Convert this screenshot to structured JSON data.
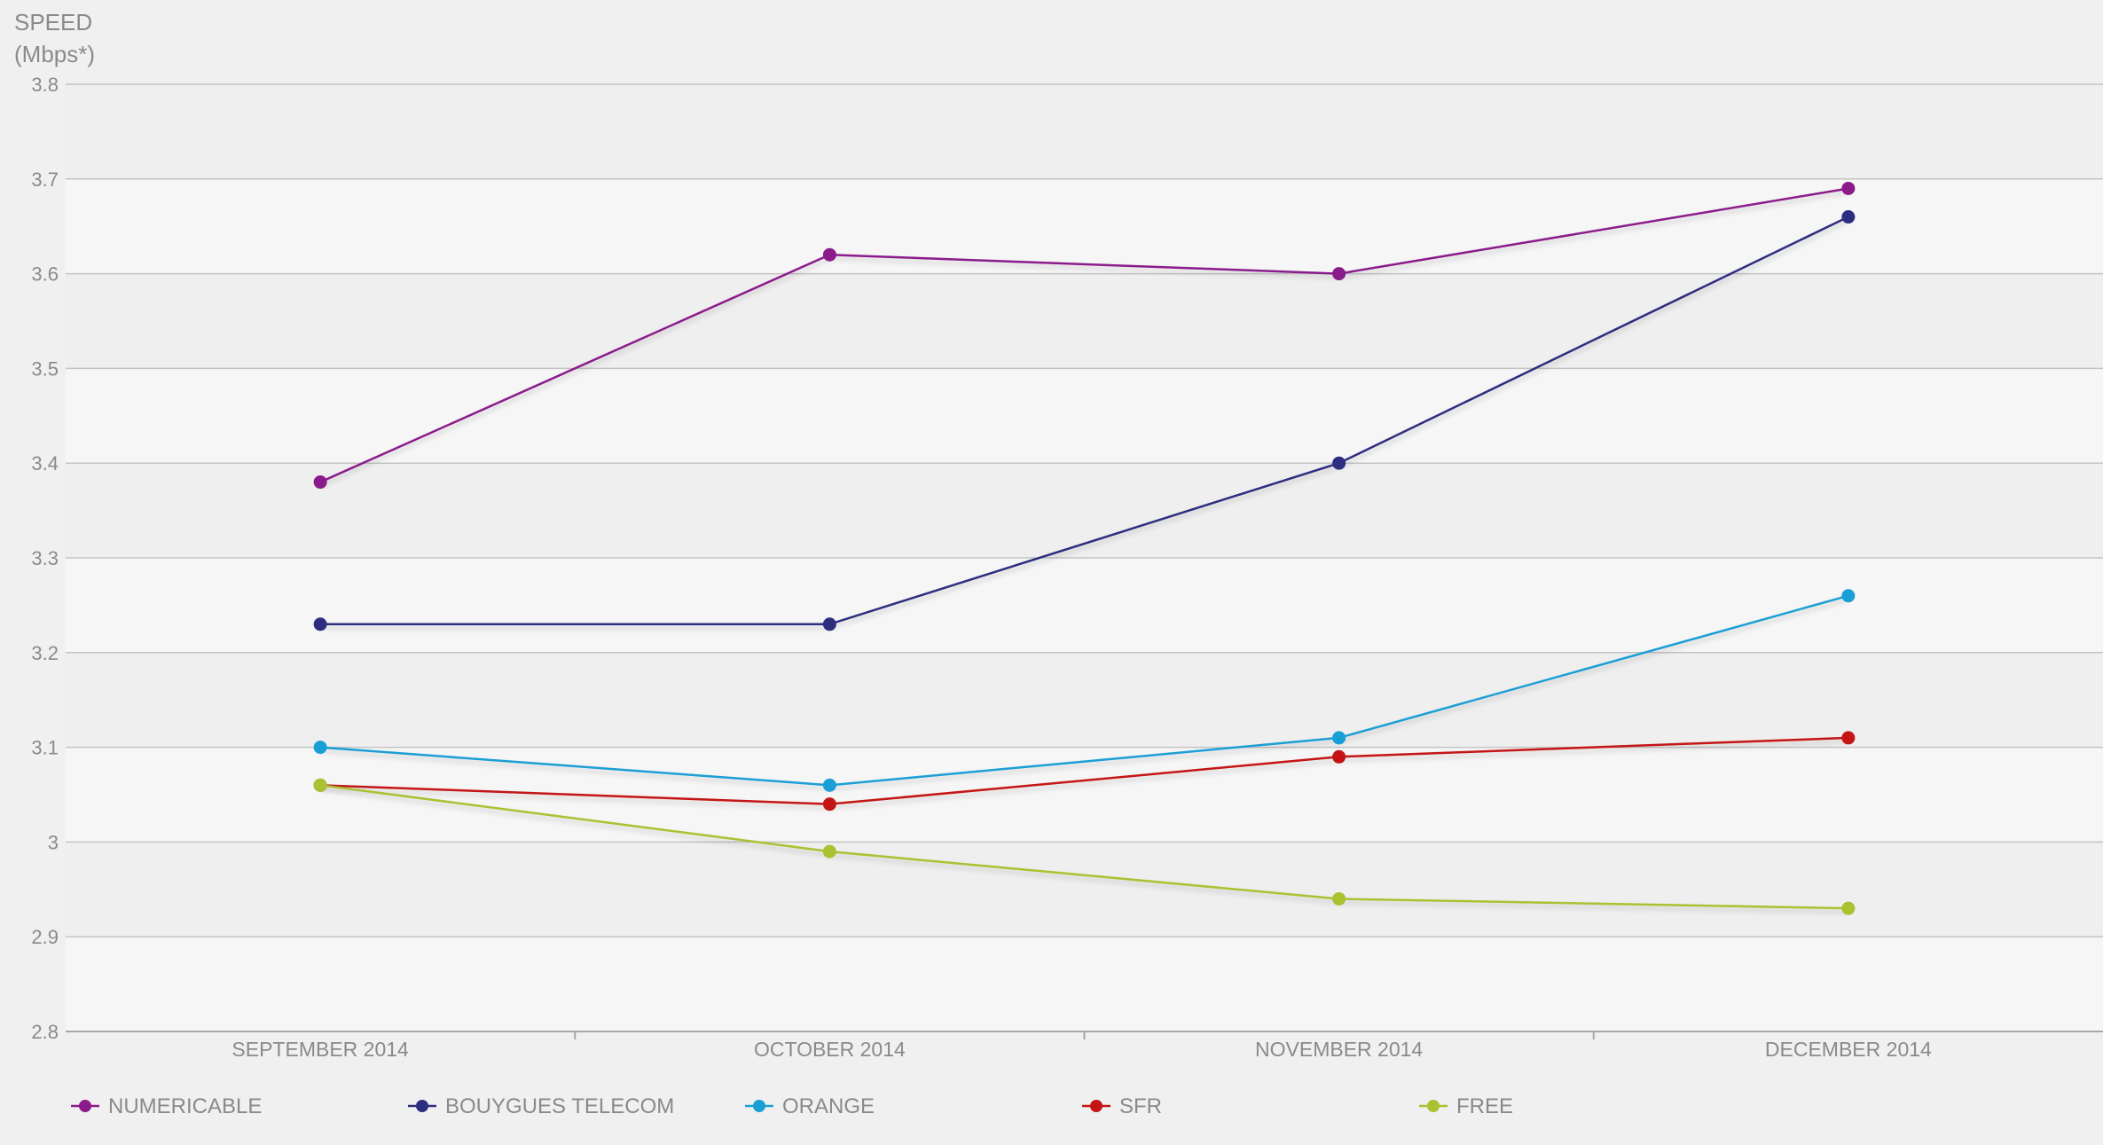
{
  "chart_data": {
    "type": "line",
    "ylabel": "SPEED\n(Mbps*)",
    "ylabel_lines": [
      "SPEED",
      "(Mbps*)"
    ],
    "xlabel": "",
    "categories": [
      "SEPTEMBER 2014",
      "OCTOBER 2014",
      "NOVEMBER 2014",
      "DECEMBER 2014"
    ],
    "ylim": [
      2.8,
      3.8
    ],
    "yticks": [
      2.8,
      2.9,
      3,
      3.1,
      3.2,
      3.3,
      3.4,
      3.5,
      3.6,
      3.7,
      3.8
    ],
    "ytick_labels": [
      "2.8",
      "2.9",
      "3",
      "3.1",
      "3.2",
      "3.3",
      "3.4",
      "3.5",
      "3.6",
      "3.7",
      "3.8"
    ],
    "grid": true,
    "legend_position": "bottom",
    "series": [
      {
        "name": "NUMERICABLE",
        "color": "#8b1a8b",
        "values": [
          3.38,
          3.62,
          3.6,
          3.69
        ]
      },
      {
        "name": "BOUYGUES TELECOM",
        "color": "#2e2e80",
        "values": [
          3.23,
          3.23,
          3.4,
          3.66
        ]
      },
      {
        "name": "ORANGE",
        "color": "#1a9fd4",
        "values": [
          3.1,
          3.06,
          3.11,
          3.26
        ]
      },
      {
        "name": "SFR",
        "color": "#c41414",
        "values": [
          3.06,
          3.04,
          3.09,
          3.11
        ]
      },
      {
        "name": "FREE",
        "color": "#a8c230",
        "values": [
          3.06,
          2.99,
          2.94,
          2.93
        ]
      }
    ]
  }
}
